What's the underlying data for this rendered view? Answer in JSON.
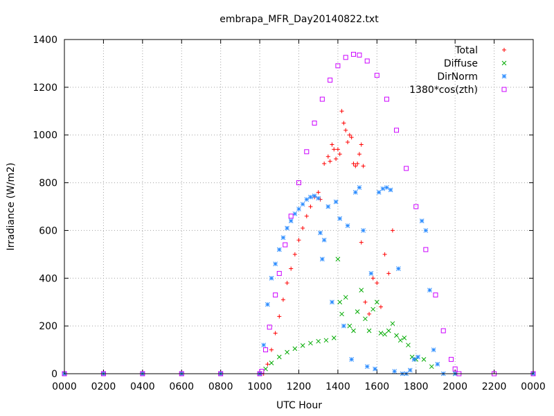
{
  "chart_data": {
    "type": "scatter",
    "title": "embrapa_MFR_Day20140822.txt",
    "xlabel": "UTC Hour",
    "ylabel": "Irradiance (W/m2)",
    "xlim": [
      0,
      24
    ],
    "ylim": [
      0,
      1400
    ],
    "grid": true,
    "legend_position": "top-right",
    "x_tick_labels": [
      "0000",
      "0200",
      "0400",
      "0600",
      "0800",
      "1000",
      "1200",
      "1400",
      "1600",
      "1800",
      "2000",
      "2200",
      "0000"
    ],
    "y_tick_labels": [
      "0",
      "200",
      "400",
      "600",
      "800",
      "1000",
      "1200",
      "1400"
    ],
    "series": [
      {
        "name": "Total",
        "color": "#ff0000",
        "marker": "plus",
        "points": [
          [
            0,
            0
          ],
          [
            2,
            0
          ],
          [
            4,
            0
          ],
          [
            6,
            0
          ],
          [
            8,
            0
          ],
          [
            10,
            0
          ],
          [
            10.2,
            0
          ],
          [
            10.4,
            40
          ],
          [
            10.6,
            100
          ],
          [
            10.8,
            170
          ],
          [
            11,
            240
          ],
          [
            11.2,
            310
          ],
          [
            11.4,
            380
          ],
          [
            11.6,
            440
          ],
          [
            11.8,
            500
          ],
          [
            12,
            560
          ],
          [
            12.2,
            610
          ],
          [
            12.4,
            660
          ],
          [
            12.6,
            700
          ],
          [
            12.8,
            740
          ],
          [
            13,
            760
          ],
          [
            13.1,
            730
          ],
          [
            13.3,
            880
          ],
          [
            13.5,
            910
          ],
          [
            13.6,
            890
          ],
          [
            13.7,
            960
          ],
          [
            13.8,
            940
          ],
          [
            13.9,
            900
          ],
          [
            14.0,
            940
          ],
          [
            14.1,
            920
          ],
          [
            14.2,
            1100
          ],
          [
            14.3,
            1050
          ],
          [
            14.4,
            1020
          ],
          [
            14.5,
            970
          ],
          [
            14.6,
            1000
          ],
          [
            14.7,
            990
          ],
          [
            14.8,
            880
          ],
          [
            14.9,
            870
          ],
          [
            15.0,
            880
          ],
          [
            15.1,
            920
          ],
          [
            15.2,
            960
          ],
          [
            15.3,
            870
          ],
          [
            15.2,
            550
          ],
          [
            15.4,
            300
          ],
          [
            15.6,
            250
          ],
          [
            15.8,
            400
          ],
          [
            16.0,
            380
          ],
          [
            16.2,
            280
          ],
          [
            16.4,
            500
          ],
          [
            16.6,
            420
          ],
          [
            16.8,
            600
          ]
        ]
      },
      {
        "name": "Diffuse",
        "color": "#00aa00",
        "marker": "cross",
        "points": [
          [
            0,
            0
          ],
          [
            2,
            0
          ],
          [
            4,
            0
          ],
          [
            6,
            0
          ],
          [
            8,
            0
          ],
          [
            10,
            0
          ],
          [
            10.3,
            20
          ],
          [
            10.6,
            45
          ],
          [
            11,
            70
          ],
          [
            11.4,
            90
          ],
          [
            11.8,
            105
          ],
          [
            12.2,
            118
          ],
          [
            12.6,
            128
          ],
          [
            13,
            136
          ],
          [
            13.4,
            140
          ],
          [
            13.8,
            150
          ],
          [
            14,
            480
          ],
          [
            14.1,
            300
          ],
          [
            14.2,
            250
          ],
          [
            14.4,
            320
          ],
          [
            14.6,
            200
          ],
          [
            14.8,
            180
          ],
          [
            15.0,
            260
          ],
          [
            15.2,
            350
          ],
          [
            15.4,
            230
          ],
          [
            15.6,
            180
          ],
          [
            15.8,
            270
          ],
          [
            16.0,
            300
          ],
          [
            16.2,
            170
          ],
          [
            16.4,
            165
          ],
          [
            16.6,
            180
          ],
          [
            16.8,
            210
          ],
          [
            17.0,
            160
          ],
          [
            17.2,
            140
          ],
          [
            17.4,
            150
          ],
          [
            17.6,
            120
          ],
          [
            17.8,
            70
          ],
          [
            18.0,
            60
          ],
          [
            18.4,
            60
          ],
          [
            18.8,
            30
          ],
          [
            20,
            0
          ],
          [
            24,
            0
          ]
        ]
      },
      {
        "name": "DirNorm",
        "color": "#2b8cff",
        "marker": "star",
        "points": [
          [
            0,
            0
          ],
          [
            2,
            0
          ],
          [
            4,
            0
          ],
          [
            6,
            0
          ],
          [
            8,
            0
          ],
          [
            10,
            0
          ],
          [
            10.2,
            120
          ],
          [
            10.4,
            290
          ],
          [
            10.6,
            400
          ],
          [
            10.8,
            460
          ],
          [
            11,
            520
          ],
          [
            11.2,
            570
          ],
          [
            11.4,
            610
          ],
          [
            11.6,
            640
          ],
          [
            11.8,
            670
          ],
          [
            12,
            690
          ],
          [
            12.2,
            710
          ],
          [
            12.4,
            730
          ],
          [
            12.6,
            740
          ],
          [
            12.8,
            745
          ],
          [
            13,
            735
          ],
          [
            13.1,
            590
          ],
          [
            13.2,
            480
          ],
          [
            13.3,
            560
          ],
          [
            13.5,
            700
          ],
          [
            13.7,
            300
          ],
          [
            13.9,
            720
          ],
          [
            14.1,
            650
          ],
          [
            14.3,
            200
          ],
          [
            14.5,
            620
          ],
          [
            14.7,
            60
          ],
          [
            14.9,
            760
          ],
          [
            15.1,
            780
          ],
          [
            15.3,
            600
          ],
          [
            15.5,
            30
          ],
          [
            15.7,
            420
          ],
          [
            15.9,
            20
          ],
          [
            16.1,
            760
          ],
          [
            16.3,
            775
          ],
          [
            16.5,
            780
          ],
          [
            16.7,
            770
          ],
          [
            16.9,
            10
          ],
          [
            17.1,
            440
          ],
          [
            17.3,
            0
          ],
          [
            17.5,
            0
          ],
          [
            17.7,
            15
          ],
          [
            17.9,
            60
          ],
          [
            18.1,
            70
          ],
          [
            18.3,
            640
          ],
          [
            18.5,
            600
          ],
          [
            18.7,
            350
          ],
          [
            18.9,
            100
          ],
          [
            19.1,
            40
          ],
          [
            19.4,
            0
          ],
          [
            20,
            0
          ],
          [
            24,
            0
          ]
        ]
      },
      {
        "name": "1380*cos(zth)",
        "color": "#cc00ff",
        "marker": "square",
        "points": [
          [
            0,
            0
          ],
          [
            2,
            0
          ],
          [
            4,
            0
          ],
          [
            6,
            0
          ],
          [
            8,
            0
          ],
          [
            10,
            0
          ],
          [
            10.1,
            10
          ],
          [
            10.3,
            100
          ],
          [
            10.5,
            195
          ],
          [
            10.8,
            330
          ],
          [
            11,
            420
          ],
          [
            11.3,
            540
          ],
          [
            11.6,
            660
          ],
          [
            12,
            800
          ],
          [
            12.4,
            930
          ],
          [
            12.8,
            1050
          ],
          [
            13.2,
            1150
          ],
          [
            13.6,
            1230
          ],
          [
            14,
            1290
          ],
          [
            14.4,
            1325
          ],
          [
            14.8,
            1338
          ],
          [
            15.1,
            1335
          ],
          [
            15.5,
            1310
          ],
          [
            16,
            1250
          ],
          [
            16.5,
            1150
          ],
          [
            17,
            1020
          ],
          [
            17.5,
            860
          ],
          [
            18,
            700
          ],
          [
            18.5,
            520
          ],
          [
            19,
            330
          ],
          [
            19.4,
            180
          ],
          [
            19.8,
            60
          ],
          [
            20,
            20
          ],
          [
            20.2,
            0
          ],
          [
            22,
            0
          ],
          [
            24,
            0
          ]
        ]
      }
    ]
  }
}
